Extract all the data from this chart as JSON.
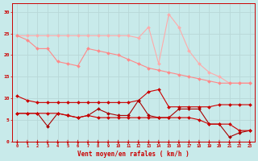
{
  "background_color": "#c8eaea",
  "grid_color": "#b8d8d8",
  "xlabel": "Vent moyen/en rafales ( km/h )",
  "tick_color": "#cc0000",
  "ylim": [
    0,
    32
  ],
  "xlim": [
    -0.5,
    23.5
  ],
  "yticks": [
    0,
    5,
    10,
    15,
    20,
    25,
    30
  ],
  "x": [
    0,
    1,
    2,
    3,
    4,
    5,
    6,
    7,
    8,
    9,
    10,
    11,
    12,
    13,
    14,
    15,
    16,
    17,
    18,
    19,
    20,
    21,
    22,
    23
  ],
  "pink1_color": "#ffaaaa",
  "pink2_color": "#ff8888",
  "red1_color": "#cc0000",
  "red2_color": "#aa0000",
  "pink1": [
    24.5,
    24.5,
    24.5,
    24.5,
    24.5,
    24.5,
    24.5,
    24.5,
    24.5,
    24.5,
    24.5,
    24.5,
    24.0,
    26.5,
    18.0,
    29.5,
    26.5,
    21.0,
    18.0,
    16.0,
    15.0,
    13.5,
    13.5,
    13.5
  ],
  "pink2": [
    24.5,
    23.5,
    21.5,
    21.5,
    18.5,
    18.0,
    17.5,
    21.5,
    21.0,
    20.5,
    20.0,
    19.0,
    18.0,
    17.0,
    16.5,
    16.0,
    15.5,
    15.0,
    14.5,
    14.0,
    13.5,
    13.5,
    13.5,
    13.5
  ],
  "red1": [
    10.5,
    9.5,
    9.0,
    9.0,
    9.0,
    9.0,
    9.0,
    9.0,
    9.0,
    9.0,
    9.0,
    9.0,
    9.5,
    11.5,
    12.0,
    8.0,
    8.0,
    8.0,
    8.0,
    8.0,
    8.5,
    8.5,
    8.5,
    8.5
  ],
  "red2": [
    6.5,
    6.5,
    6.5,
    3.5,
    6.5,
    6.0,
    5.5,
    6.0,
    7.5,
    6.5,
    6.0,
    6.0,
    9.5,
    6.0,
    5.5,
    5.5,
    7.5,
    7.5,
    7.5,
    4.0,
    4.0,
    1.0,
    2.0,
    2.5
  ],
  "red3": [
    6.5,
    6.5,
    6.5,
    6.5,
    6.5,
    6.0,
    5.5,
    6.0,
    5.5,
    5.5,
    5.5,
    5.5,
    5.5,
    5.5,
    5.5,
    5.5,
    5.5,
    5.5,
    5.0,
    4.0,
    4.0,
    4.0,
    2.5,
    2.5
  ]
}
